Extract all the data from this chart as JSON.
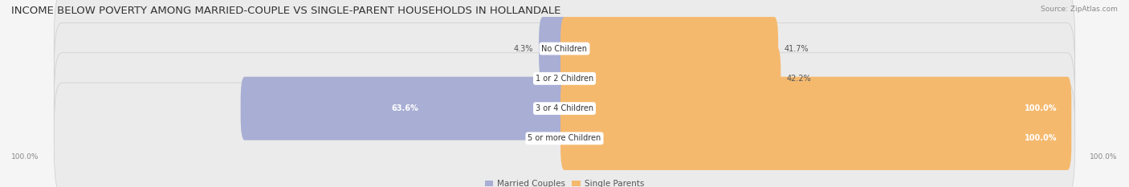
{
  "title": "INCOME BELOW POVERTY AMONG MARRIED-COUPLE VS SINGLE-PARENT HOUSEHOLDS IN HOLLANDALE",
  "source": "Source: ZipAtlas.com",
  "categories": [
    "No Children",
    "1 or 2 Children",
    "3 or 4 Children",
    "5 or more Children"
  ],
  "married_values": [
    4.3,
    0.0,
    63.6,
    0.0
  ],
  "single_values": [
    41.7,
    42.2,
    100.0,
    100.0
  ],
  "married_color": "#a8aed4",
  "single_color": "#f5b96e",
  "bar_bg_color": "#e0e0e0",
  "row_bg_color": "#ebebeb",
  "max_value": 100.0,
  "title_fontsize": 9.5,
  "label_fontsize": 7.0,
  "category_fontsize": 7.0,
  "legend_fontsize": 7.5,
  "axis_label_fontsize": 6.5,
  "background_color": "#f5f5f5",
  "white_color": "#ffffff"
}
